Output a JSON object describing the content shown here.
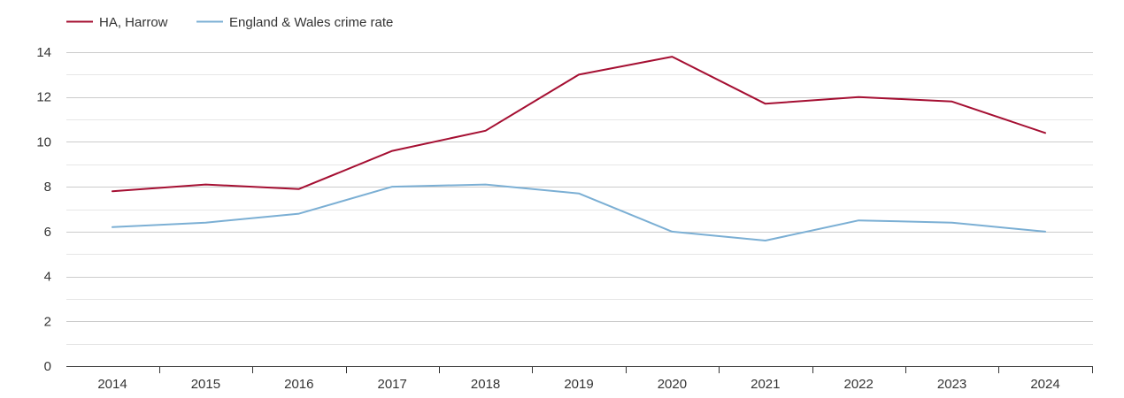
{
  "chart_data": {
    "type": "line",
    "title": "",
    "xlabel": "",
    "ylabel": "",
    "x": [
      "2014",
      "2015",
      "2016",
      "2017",
      "2018",
      "2019",
      "2020",
      "2021",
      "2022",
      "2023",
      "2024"
    ],
    "ylim": [
      0,
      14
    ],
    "yticks": [
      0,
      2,
      4,
      6,
      8,
      10,
      12,
      14
    ],
    "grid": true,
    "legend_position": "top-left",
    "series": [
      {
        "name": "HA, Harrow",
        "color": "#a50f32",
        "values": [
          7.8,
          8.1,
          7.9,
          9.6,
          10.5,
          13.0,
          13.8,
          11.7,
          12.0,
          11.8,
          10.4
        ]
      },
      {
        "name": "England & Wales crime rate",
        "color": "#7bafd4",
        "values": [
          6.2,
          6.4,
          6.8,
          8.0,
          8.1,
          7.7,
          6.0,
          5.6,
          6.5,
          6.4,
          6.0
        ]
      }
    ]
  }
}
